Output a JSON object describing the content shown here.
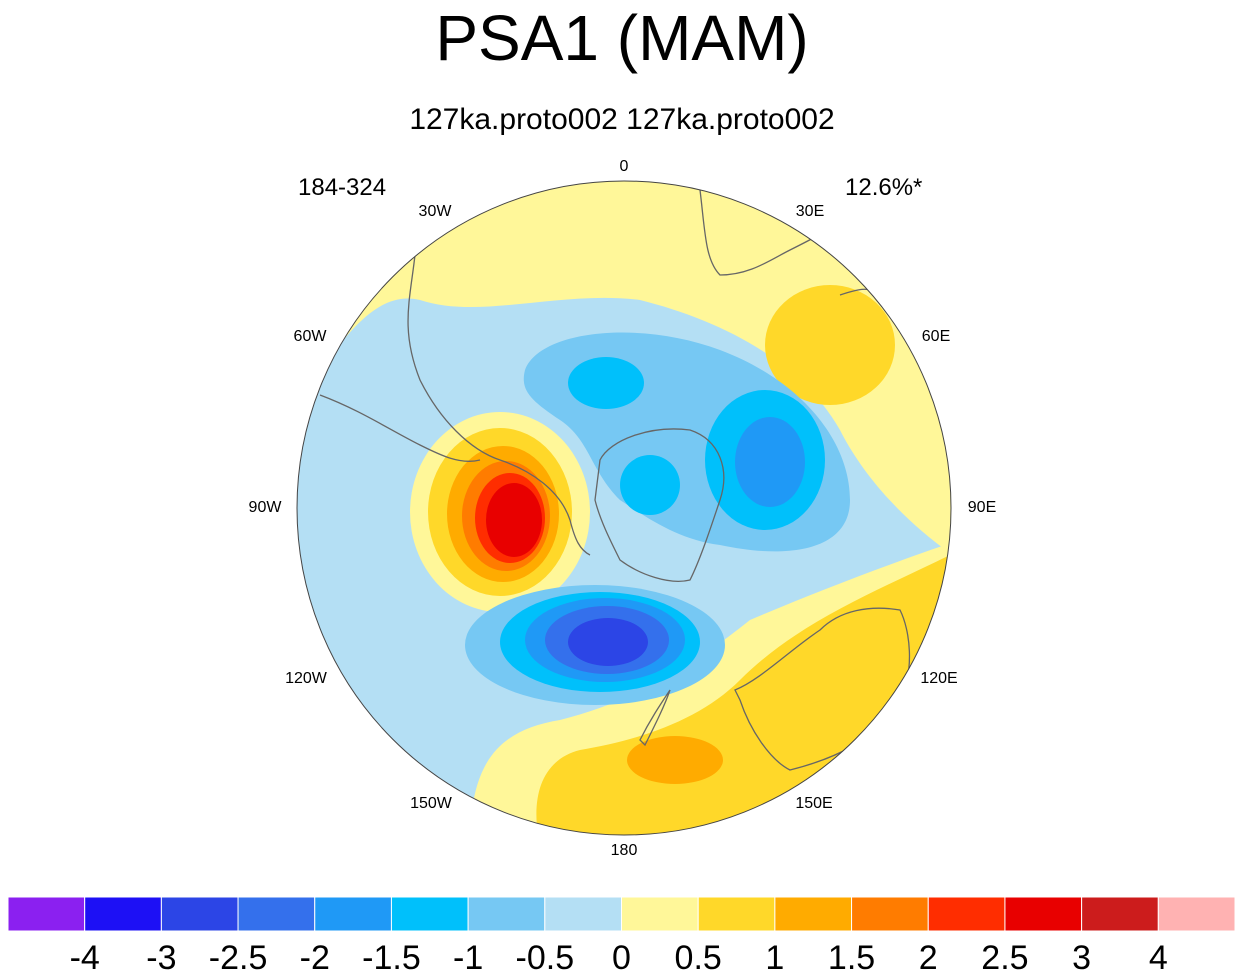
{
  "title": "PSA1 (MAM)",
  "subtitle": "127ka.proto002  127ka.proto002",
  "left_label": "184-324",
  "right_label": "12.6%*",
  "longitude_labels": [
    "0",
    "30E",
    "60E",
    "90E",
    "120E",
    "150E",
    "180",
    "150W",
    "120W",
    "90W",
    "60W",
    "30W"
  ],
  "colorbar": {
    "colors": [
      "#8b20f0",
      "#1d10f5",
      "#2c45e6",
      "#3470ec",
      "#1f99f6",
      "#00c0fb",
      "#76c8f3",
      "#b4dff4",
      "#fff799",
      "#ffd829",
      "#ffab00",
      "#ff7c00",
      "#ff2d00",
      "#e80000",
      "#cc1c1c",
      "#ffb2b2"
    ],
    "labels": [
      "-4",
      "-3",
      "-2.5",
      "-2",
      "-1.5",
      "-1",
      "-0.5",
      "0",
      "0.5",
      "1",
      "1.5",
      "2",
      "2.5",
      "3",
      "4"
    ]
  },
  "map_colors": {
    "background": "#b4dff4",
    "ocean_line": "#666666"
  }
}
